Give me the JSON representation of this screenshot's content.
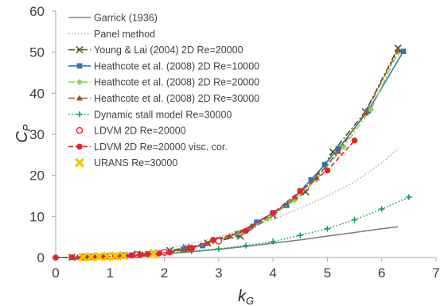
{
  "chart_data": {
    "type": "line",
    "xlabel": {
      "main": "k",
      "sub": "G"
    },
    "ylabel": {
      "main": "C",
      "sub": "P"
    },
    "xlim": [
      0,
      7
    ],
    "ylim": [
      0,
      60
    ],
    "x_ticks": [
      "0",
      "1",
      "2",
      "3",
      "4",
      "5",
      "6",
      "7"
    ],
    "y_ticks": [
      "0",
      "10",
      "20",
      "30",
      "40",
      "50",
      "60"
    ],
    "grid": "none",
    "legend_position": "top-left (inside)",
    "series": [
      {
        "name": "Garrick (1936)",
        "color": "#808080",
        "line": "solid",
        "marker": "none",
        "points": [
          [
            0,
            0
          ],
          [
            0.5,
            0.05
          ],
          [
            1,
            0.2
          ],
          [
            1.5,
            0.5
          ],
          [
            2,
            0.9
          ],
          [
            2.5,
            1.4
          ],
          [
            3,
            2.0
          ],
          [
            3.5,
            2.7
          ],
          [
            4,
            3.5
          ],
          [
            4.5,
            4.3
          ],
          [
            5,
            5.2
          ],
          [
            5.5,
            6.1
          ],
          [
            6,
            7.0
          ],
          [
            6.3,
            7.5
          ]
        ]
      },
      {
        "name": "Panel method",
        "color": "#b0b0b0",
        "line": "dotted",
        "marker": "none",
        "points": [
          [
            0,
            0
          ],
          [
            0.5,
            0.1
          ],
          [
            1,
            0.4
          ],
          [
            1.5,
            1.0
          ],
          [
            2,
            2.0
          ],
          [
            2.5,
            3.4
          ],
          [
            3,
            5.0
          ],
          [
            3.5,
            7.0
          ],
          [
            4,
            9.3
          ],
          [
            4.5,
            12.0
          ],
          [
            5,
            15.0
          ],
          [
            5.5,
            18.4
          ],
          [
            6,
            23.0
          ],
          [
            6.3,
            26.5
          ]
        ]
      },
      {
        "name": "Young & Lai (2004) 2D Re=20000",
        "color": "#3f5a1f",
        "line": "dashdot",
        "marker": "x",
        "points": [
          [
            0.3,
            0.05
          ],
          [
            0.6,
            0.15
          ],
          [
            0.9,
            0.3
          ],
          [
            1.2,
            0.5
          ],
          [
            1.5,
            0.8
          ],
          [
            1.8,
            1.2
          ],
          [
            2.1,
            1.7
          ],
          [
            2.4,
            2.4
          ],
          [
            2.8,
            3.5
          ],
          [
            3.4,
            5.2
          ],
          [
            4.0,
            10.3
          ],
          [
            4.6,
            16.0
          ],
          [
            5.1,
            25.7
          ],
          [
            5.7,
            35.5
          ],
          [
            6.3,
            51.0
          ]
        ]
      },
      {
        "name": "Heathcote et al. (2008) 2D Re=10000",
        "color": "#2e75b6",
        "line": "solid",
        "marker": "square",
        "points": [
          [
            0.5,
            0.1
          ],
          [
            0.8,
            0.2
          ],
          [
            1.1,
            0.35
          ],
          [
            1.4,
            0.6
          ],
          [
            1.7,
            0.9
          ],
          [
            2.0,
            1.3
          ],
          [
            2.35,
            2.0
          ],
          [
            2.7,
            2.9
          ],
          [
            3.0,
            4.3
          ],
          [
            3.35,
            5.8
          ],
          [
            3.7,
            8.6
          ],
          [
            4.0,
            10.9
          ],
          [
            4.25,
            12.7
          ],
          [
            4.5,
            16.2
          ],
          [
            4.7,
            18.9
          ],
          [
            4.95,
            22.6
          ],
          [
            5.2,
            26.5
          ],
          [
            5.75,
            35.7
          ],
          [
            6.4,
            50.2
          ]
        ]
      },
      {
        "name": "Heathcote et al. (2008) 2D Re=20000",
        "color": "#92d050",
        "line": "dashdot",
        "marker": "diamond",
        "points": [
          [
            0.5,
            0.1
          ],
          [
            0.9,
            0.25
          ],
          [
            1.3,
            0.5
          ],
          [
            1.7,
            0.9
          ],
          [
            2.1,
            1.4
          ],
          [
            2.5,
            2.3
          ],
          [
            2.9,
            3.8
          ],
          [
            3.4,
            6.0
          ],
          [
            3.9,
            9.5
          ],
          [
            4.4,
            14.0
          ],
          [
            4.8,
            19.0
          ],
          [
            5.3,
            27.0
          ],
          [
            5.8,
            36.0
          ],
          [
            6.3,
            50.0
          ]
        ]
      },
      {
        "name": "Heathcote et al. (2008) 2D Re=30000",
        "color": "#a0522d",
        "line": "dashdot",
        "marker": "triangle",
        "points": [
          [
            0.4,
            0.08
          ],
          [
            0.8,
            0.2
          ],
          [
            1.2,
            0.45
          ],
          [
            1.6,
            0.8
          ],
          [
            2.0,
            1.3
          ],
          [
            2.4,
            2.1
          ],
          [
            2.8,
            3.4
          ],
          [
            3.2,
            5.2
          ],
          [
            3.6,
            7.7
          ],
          [
            4.0,
            10.8
          ],
          [
            4.4,
            14.7
          ],
          [
            4.8,
            19.5
          ],
          [
            5.2,
            25.8
          ],
          [
            5.7,
            35.2
          ],
          [
            6.3,
            50.5
          ]
        ]
      },
      {
        "name": "Dynamic stall model Re=30000",
        "color": "#00a651",
        "line": "dotted",
        "marker": "plus",
        "points": [
          [
            0,
            0
          ],
          [
            0.5,
            0.1
          ],
          [
            1,
            0.3
          ],
          [
            1.5,
            0.6
          ],
          [
            2,
            1.0
          ],
          [
            2.5,
            1.5
          ],
          [
            3,
            2.1
          ],
          [
            3.5,
            2.9
          ],
          [
            4,
            3.9
          ],
          [
            4.5,
            5.4
          ],
          [
            5,
            7.0
          ],
          [
            5.5,
            9.2
          ],
          [
            6,
            11.8
          ],
          [
            6.5,
            14.7
          ]
        ]
      },
      {
        "name": "LDVM 2D Re=20000",
        "color": "#e8222b",
        "line": "none",
        "marker": "circle-open",
        "points": [
          [
            0.5,
            0.1
          ],
          [
            1.0,
            0.3
          ],
          [
            1.5,
            0.7
          ],
          [
            2.0,
            1.3
          ],
          [
            2.5,
            2.3
          ],
          [
            3.0,
            4.0
          ]
        ]
      },
      {
        "name": "LDVM 2D Re=20000 visc. cor.",
        "color": "#e8222b",
        "line": "dashed",
        "marker": "circle",
        "points": [
          [
            0,
            0
          ],
          [
            0.3,
            0.05
          ],
          [
            0.5,
            0.1
          ],
          [
            0.7,
            0.15
          ],
          [
            0.9,
            0.22
          ],
          [
            1.1,
            0.3
          ],
          [
            1.3,
            0.4
          ],
          [
            1.4,
            0.5
          ],
          [
            1.55,
            0.6
          ],
          [
            1.7,
            0.8
          ],
          [
            1.9,
            1.0
          ],
          [
            2.1,
            1.3
          ],
          [
            2.5,
            2.2
          ],
          [
            2.9,
            4.3
          ],
          [
            3.5,
            6.5
          ],
          [
            4.0,
            10.8
          ],
          [
            4.5,
            16.2
          ],
          [
            5.0,
            21.2
          ],
          [
            5.5,
            28.5
          ]
        ]
      },
      {
        "name": "URANS Re=30000",
        "color": "#f5c400",
        "line": "none",
        "marker": "x-bold",
        "points": [
          [
            0.5,
            0.1
          ],
          [
            0.65,
            0.15
          ],
          [
            0.8,
            0.2
          ],
          [
            0.95,
            0.3
          ],
          [
            1.1,
            0.35
          ],
          [
            1.25,
            0.45
          ],
          [
            1.8,
            0.9
          ]
        ]
      }
    ]
  }
}
